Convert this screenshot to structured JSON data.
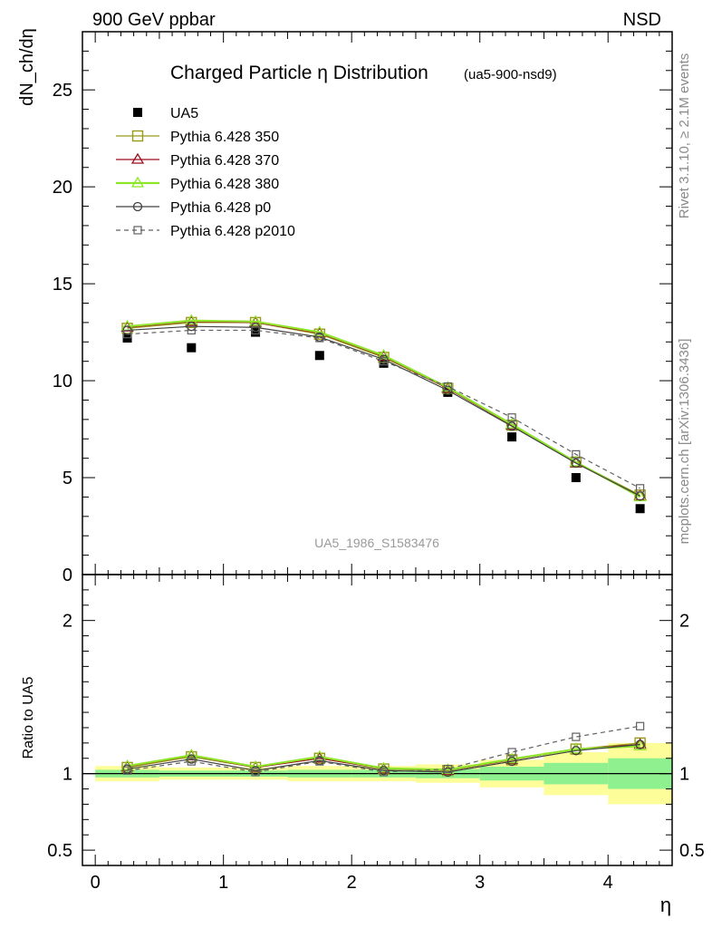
{
  "header": {
    "left": "900 GeV ppbar",
    "right": "NSD"
  },
  "side_labels": {
    "rivet": "Rivet 3.1.10, ≥ 2.1M events",
    "mcplots": "mcplots.cern.ch [arXiv:1306.3436]"
  },
  "colors": {
    "ua5": "#000000",
    "p350": "#9a9a1a",
    "p370": "#9a0e1e",
    "p380": "#8ee52a",
    "p0": "#404040",
    "p2010": "#606060",
    "band_inner": "#8ef08e",
    "band_outer": "#fdfd9a"
  },
  "chart_data": [
    {
      "type": "line",
      "title": "Charged Particle η Distribution",
      "subtitle": "(ua5-900-nsd9)",
      "watermark": "UA5_1986_S1583476",
      "ylabel": "dN_ch/dη",
      "xlim": [
        -0.1,
        4.5
      ],
      "ylim": [
        0,
        28
      ],
      "yticks": [
        0,
        5,
        10,
        15,
        20,
        25
      ],
      "x": [
        0.25,
        0.75,
        1.25,
        1.75,
        2.25,
        2.75,
        3.25,
        3.75,
        4.25
      ],
      "series": [
        {
          "name": "UA5",
          "marker": "square-filled",
          "values": [
            12.2,
            11.7,
            12.5,
            11.3,
            10.9,
            9.4,
            7.1,
            5.0,
            3.4
          ]
        },
        {
          "name": "Pythia 6.428 350",
          "marker": "square-open",
          "values": [
            12.7,
            13.0,
            13.0,
            12.4,
            11.2,
            9.6,
            7.7,
            5.8,
            4.1
          ]
        },
        {
          "name": "Pythia 6.428 370",
          "marker": "triangle-open",
          "values": [
            12.75,
            13.05,
            13.0,
            12.45,
            11.25,
            9.6,
            7.7,
            5.75,
            4.05
          ]
        },
        {
          "name": "Pythia 6.428 380",
          "marker": "triangle-open",
          "values": [
            12.8,
            13.1,
            13.05,
            12.5,
            11.3,
            9.65,
            7.75,
            5.8,
            4.0
          ]
        },
        {
          "name": "Pythia 6.428 p0",
          "marker": "circle-open",
          "values": [
            12.6,
            12.8,
            12.75,
            12.25,
            11.1,
            9.5,
            7.65,
            5.75,
            4.05
          ]
        },
        {
          "name": "Pythia 6.428 p2010",
          "marker": "square-open-small",
          "dashed": true,
          "values": [
            12.4,
            12.6,
            12.6,
            12.2,
            11.0,
            9.7,
            8.1,
            6.2,
            4.45
          ]
        }
      ]
    },
    {
      "type": "line",
      "ylabel": "Ratio to UA5",
      "xlabel": "η",
      "xlim": [
        -0.1,
        4.5
      ],
      "ylim": [
        0.4,
        2.3
      ],
      "yticks": [
        0.5,
        1,
        2
      ],
      "ytick_labels": [
        "0.5",
        "1",
        "2"
      ],
      "xticks": [
        0,
        1,
        2,
        3,
        4
      ],
      "x": [
        0.25,
        0.75,
        1.25,
        1.75,
        2.25,
        2.75,
        3.25,
        3.75,
        4.25
      ],
      "bins": [
        [
          0.0,
          0.5
        ],
        [
          0.5,
          1.0
        ],
        [
          1.0,
          1.5
        ],
        [
          1.5,
          2.0
        ],
        [
          2.0,
          2.5
        ],
        [
          2.5,
          3.0
        ],
        [
          3.0,
          3.5
        ],
        [
          3.5,
          4.0
        ],
        [
          4.0,
          4.5
        ]
      ],
      "band_inner": [
        0.025,
        0.02,
        0.02,
        0.025,
        0.025,
        0.03,
        0.045,
        0.07,
        0.1
      ],
      "band_outer": [
        0.05,
        0.04,
        0.04,
        0.05,
        0.05,
        0.06,
        0.09,
        0.14,
        0.2
      ],
      "series": [
        {
          "name": "Pythia 6.428 350",
          "values": [
            1.04,
            1.11,
            1.04,
            1.1,
            1.03,
            1.02,
            1.09,
            1.16,
            1.2
          ]
        },
        {
          "name": "Pythia 6.428 370",
          "values": [
            1.045,
            1.115,
            1.04,
            1.1,
            1.03,
            1.02,
            1.09,
            1.16,
            1.19
          ]
        },
        {
          "name": "Pythia 6.428 380",
          "values": [
            1.05,
            1.12,
            1.045,
            1.11,
            1.035,
            1.025,
            1.095,
            1.16,
            1.18
          ]
        },
        {
          "name": "Pythia 6.428 p0",
          "values": [
            1.03,
            1.095,
            1.02,
            1.085,
            1.02,
            1.01,
            1.08,
            1.15,
            1.19
          ]
        },
        {
          "name": "Pythia 6.428 p2010",
          "values": [
            1.02,
            1.08,
            1.01,
            1.08,
            1.01,
            1.03,
            1.14,
            1.24,
            1.31
          ]
        }
      ]
    }
  ]
}
